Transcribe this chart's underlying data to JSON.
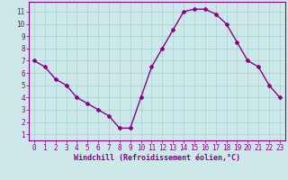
{
  "x": [
    0,
    1,
    2,
    3,
    4,
    5,
    6,
    7,
    8,
    9,
    10,
    11,
    12,
    13,
    14,
    15,
    16,
    17,
    18,
    19,
    20,
    21,
    22,
    23
  ],
  "y": [
    7.0,
    6.5,
    5.5,
    5.0,
    4.0,
    3.5,
    3.0,
    2.5,
    1.5,
    1.5,
    4.0,
    6.5,
    8.0,
    9.5,
    11.0,
    11.2,
    11.2,
    10.8,
    10.0,
    8.5,
    7.0,
    6.5,
    5.0,
    4.0
  ],
  "line_color": "#8B008B",
  "marker": "D",
  "marker_size": 2,
  "line_width": 1,
  "bg_color": "#cce8e8",
  "grid_color": "#aad4d4",
  "xlabel": "Windchill (Refroidissement éolien,°C)",
  "xlabel_color": "#8B008B",
  "xlabel_fontsize": 6,
  "tick_color": "#8B008B",
  "tick_fontsize": 5.5,
  "xlim": [
    -0.5,
    23.5
  ],
  "ylim": [
    0.5,
    11.8
  ],
  "yticks": [
    1,
    2,
    3,
    4,
    5,
    6,
    7,
    8,
    9,
    10,
    11
  ],
  "xticks": [
    0,
    1,
    2,
    3,
    4,
    5,
    6,
    7,
    8,
    9,
    10,
    11,
    12,
    13,
    14,
    15,
    16,
    17,
    18,
    19,
    20,
    21,
    22,
    23
  ]
}
